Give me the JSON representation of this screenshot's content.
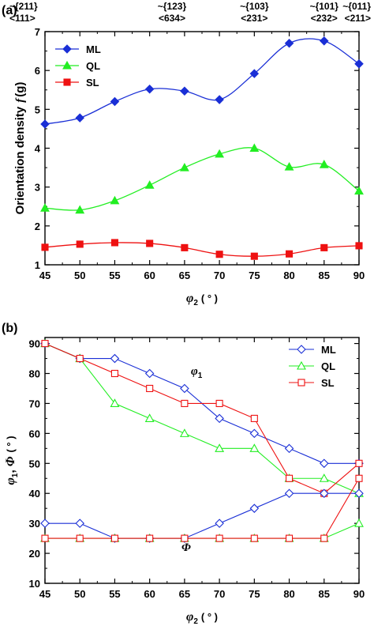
{
  "chart_data": [
    {
      "type": "line",
      "panel_label": "(a)",
      "xlabel_symbol": "φ",
      "xlabel_subscript": "2",
      "xlabel_unit": "( ° )",
      "ylabel": "Orientation density",
      "ylabel_symbol": "f",
      "ylabel_unit": "(g)",
      "xlim": [
        45,
        90
      ],
      "ylim": [
        1,
        7
      ],
      "xticks": [
        45,
        50,
        55,
        60,
        65,
        70,
        75,
        80,
        85,
        90
      ],
      "yticks": [
        1,
        2,
        3,
        4,
        5,
        6,
        7
      ],
      "top_annotations": [
        {
          "x": 45,
          "line1": "~{211}",
          "line2": "<111>"
        },
        {
          "x": 63.2,
          "line1": "~{123}",
          "line2": "<634>"
        },
        {
          "x": 75,
          "line1": "~{103}",
          "line2": "<231>"
        },
        {
          "x": 85,
          "line1": "~{101}",
          "line2": "<232>"
        },
        {
          "x": 90,
          "line1": "~{011}",
          "line2": "<211>"
        }
      ],
      "legend_position": "top-left",
      "series": [
        {
          "name": "ML",
          "marker": "diamond",
          "color": "#1a2fd6",
          "x": [
            45,
            50,
            55,
            60,
            65,
            70,
            75,
            80,
            85,
            90
          ],
          "values": [
            4.62,
            4.78,
            5.2,
            5.52,
            5.47,
            5.25,
            5.92,
            6.7,
            6.76,
            6.17
          ]
        },
        {
          "name": "QL",
          "marker": "triangle",
          "color": "#22ee22",
          "x": [
            45,
            50,
            55,
            60,
            65,
            70,
            75,
            80,
            85,
            90
          ],
          "values": [
            2.46,
            2.41,
            2.65,
            3.05,
            3.5,
            3.85,
            4.0,
            3.52,
            3.58,
            2.9
          ]
        },
        {
          "name": "SL",
          "marker": "square",
          "color": "#ee1111",
          "x": [
            45,
            50,
            55,
            60,
            65,
            70,
            75,
            80,
            85,
            90
          ],
          "values": [
            1.45,
            1.53,
            1.57,
            1.55,
            1.44,
            1.27,
            1.22,
            1.28,
            1.44,
            1.49
          ]
        }
      ]
    },
    {
      "type": "line",
      "panel_label": "(b)",
      "xlabel_symbol": "φ",
      "xlabel_subscript": "2",
      "xlabel_unit": "( ° )",
      "ylabel_phi1": "φ",
      "ylabel_phi1_sub": "1",
      "ylabel_sep": ",",
      "ylabel_Phi": "Φ",
      "ylabel_unit": "( ° )",
      "xlim": [
        45,
        90
      ],
      "ylim": [
        10,
        92
      ],
      "xticks": [
        45,
        50,
        55,
        60,
        65,
        70,
        75,
        80,
        85,
        90
      ],
      "yticks": [
        10,
        20,
        30,
        40,
        50,
        60,
        70,
        80,
        90
      ],
      "annotation_phi1": {
        "symbol": "φ",
        "sub": "1"
      },
      "annotation_Phi": {
        "symbol": "Φ"
      },
      "legend_position": "top-right",
      "series": [
        {
          "name": "ML",
          "marker": "diamond",
          "color": "#1a2fd6",
          "group": "phi1",
          "x": [
            45,
            50,
            55,
            60,
            65,
            70,
            75,
            80,
            85,
            90
          ],
          "values": [
            90,
            85,
            85,
            80,
            75,
            65,
            60,
            55,
            50,
            50
          ]
        },
        {
          "name": "QL",
          "marker": "triangle",
          "color": "#22ee22",
          "group": "phi1",
          "x": [
            45,
            50,
            55,
            60,
            65,
            70,
            75,
            80,
            85,
            90
          ],
          "values": [
            90,
            85,
            70,
            65,
            60,
            55,
            55,
            45,
            45,
            40
          ]
        },
        {
          "name": "SL",
          "marker": "square",
          "color": "#ee1111",
          "group": "phi1",
          "x": [
            45,
            50,
            55,
            60,
            65,
            70,
            75,
            80,
            85,
            90
          ],
          "values": [
            90,
            85,
            80,
            75,
            70,
            70,
            65,
            45,
            40,
            50
          ]
        },
        {
          "marker": "diamond",
          "color": "#1a2fd6",
          "group": "Phi",
          "x": [
            45,
            50,
            55,
            60,
            65,
            70,
            75,
            80,
            85,
            90
          ],
          "values": [
            30,
            30,
            25,
            25,
            25,
            30,
            35,
            40,
            40,
            40
          ]
        },
        {
          "marker": "triangle",
          "color": "#22ee22",
          "group": "Phi",
          "x": [
            45,
            50,
            55,
            60,
            65,
            70,
            75,
            80,
            85,
            90
          ],
          "values": [
            25,
            25,
            25,
            25,
            25,
            25,
            25,
            25,
            25,
            30
          ]
        },
        {
          "marker": "square",
          "color": "#ee1111",
          "group": "Phi",
          "x": [
            45,
            50,
            55,
            60,
            65,
            70,
            75,
            80,
            85,
            90
          ],
          "values": [
            25,
            25,
            25,
            25,
            25,
            25,
            25,
            25,
            25,
            45
          ]
        }
      ]
    }
  ]
}
